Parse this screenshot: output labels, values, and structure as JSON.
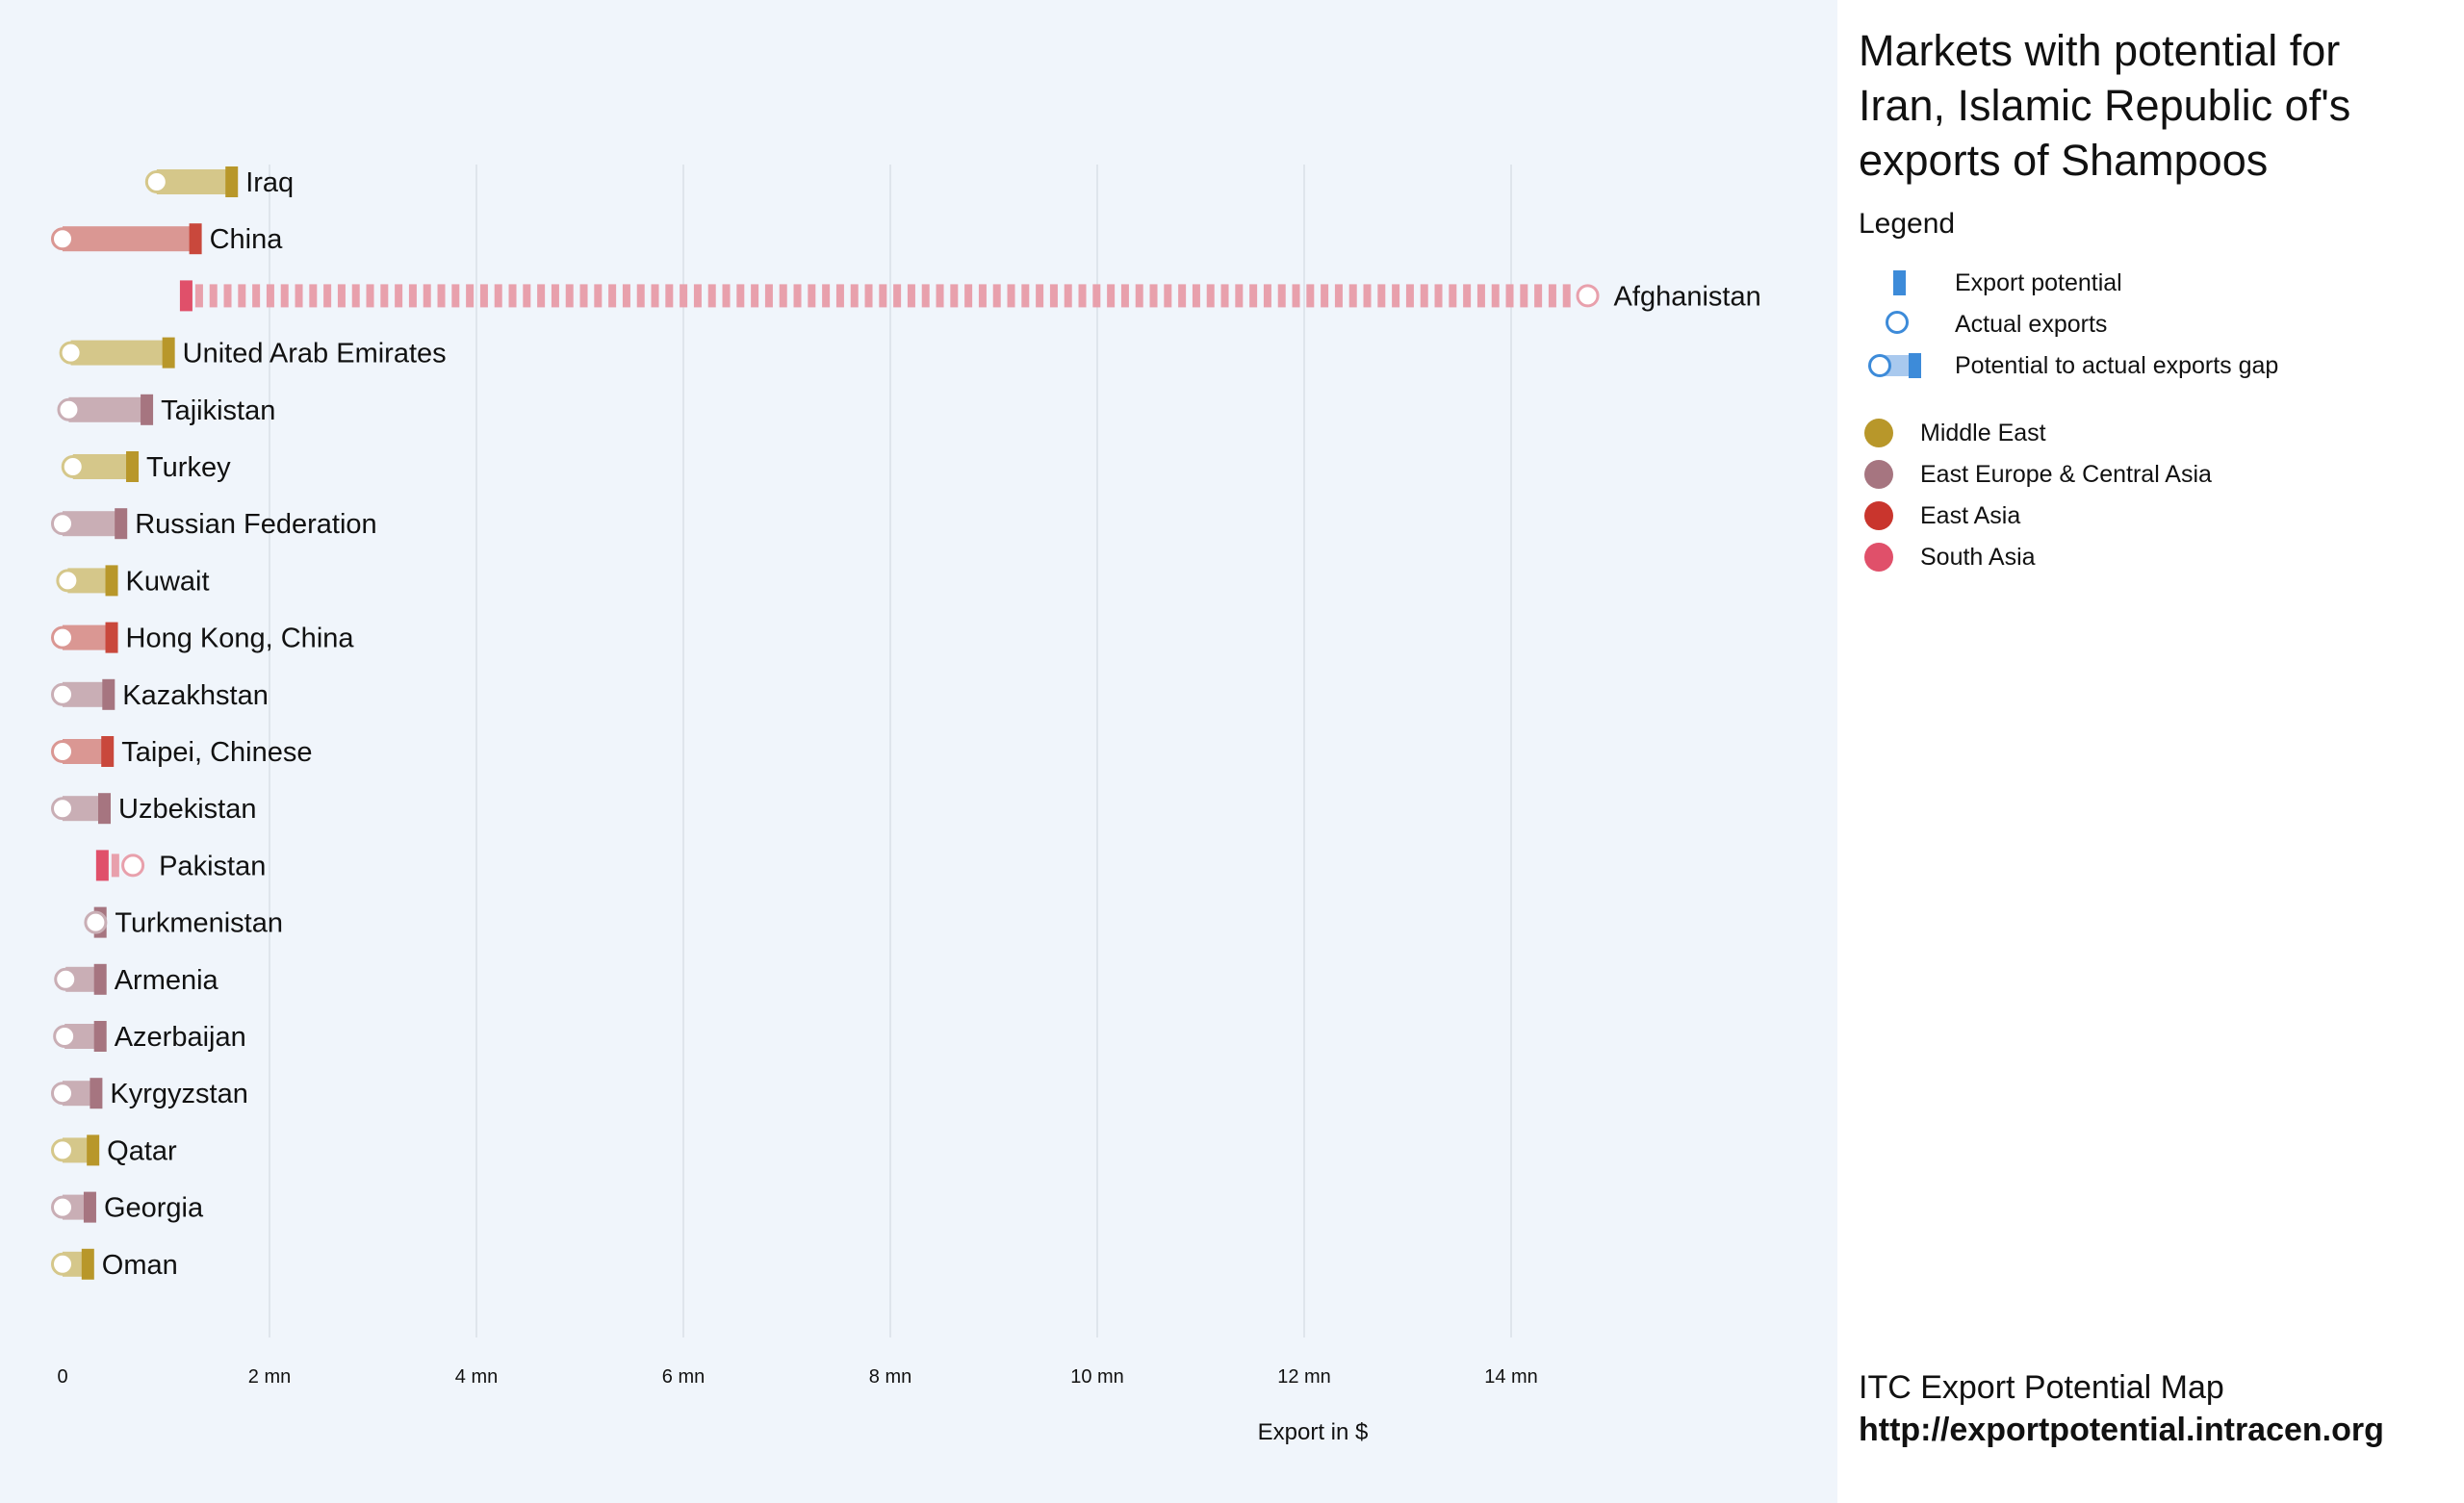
{
  "chart_data": {
    "type": "dumbbell-bar",
    "title": "Markets with potential for Iran, Islamic Republic of's exports of Shampoos",
    "xlabel": "Export in $",
    "xlim": [
      0,
      17
    ],
    "xticks": [
      0,
      2,
      4,
      6,
      8,
      10,
      12,
      14
    ],
    "xtick_labels": [
      "0",
      "2 mn",
      "4 mn",
      "6 mn",
      "8 mn",
      "10 mn",
      "12 mn",
      "14 mn"
    ],
    "unit": "mn USD",
    "markets": [
      {
        "name": "Iraq",
        "region": "Middle East",
        "potential": 1.63,
        "actual": 0.91
      },
      {
        "name": "China",
        "region": "East Asia",
        "potential": 1.28,
        "actual": 0.0
      },
      {
        "name": "Afghanistan",
        "region": "South Asia",
        "potential": 1.19,
        "actual": 14.74
      },
      {
        "name": "United Arab Emirates",
        "region": "Middle East",
        "potential": 1.02,
        "actual": 0.08
      },
      {
        "name": "Tajikistan",
        "region": "East Europe & Central Asia",
        "potential": 0.81,
        "actual": 0.06
      },
      {
        "name": "Turkey",
        "region": "Middle East",
        "potential": 0.67,
        "actual": 0.1
      },
      {
        "name": "Russian Federation",
        "region": "East Europe & Central Asia",
        "potential": 0.56,
        "actual": 0.0
      },
      {
        "name": "Kuwait",
        "region": "Middle East",
        "potential": 0.47,
        "actual": 0.05
      },
      {
        "name": "Hong Kong, China",
        "region": "East Asia",
        "potential": 0.47,
        "actual": 0.0
      },
      {
        "name": "Kazakhstan",
        "region": "East Europe & Central Asia",
        "potential": 0.44,
        "actual": 0.0
      },
      {
        "name": "Taipei, Chinese",
        "region": "East Asia",
        "potential": 0.43,
        "actual": 0.0
      },
      {
        "name": "Uzbekistan",
        "region": "East Europe & Central Asia",
        "potential": 0.4,
        "actual": 0.0
      },
      {
        "name": "Pakistan",
        "region": "South Asia",
        "potential": 0.38,
        "actual": 0.68
      },
      {
        "name": "Turkmenistan",
        "region": "East Europe & Central Asia",
        "potential": 0.36,
        "actual": 0.32
      },
      {
        "name": "Armenia",
        "region": "East Europe & Central Asia",
        "potential": 0.36,
        "actual": 0.03
      },
      {
        "name": "Azerbaijan",
        "region": "East Europe & Central Asia",
        "potential": 0.36,
        "actual": 0.02
      },
      {
        "name": "Kyrgyzstan",
        "region": "East Europe & Central Asia",
        "potential": 0.32,
        "actual": 0.0
      },
      {
        "name": "Qatar",
        "region": "Middle East",
        "potential": 0.29,
        "actual": 0.0
      },
      {
        "name": "Georgia",
        "region": "East Europe & Central Asia",
        "potential": 0.26,
        "actual": 0.0
      },
      {
        "name": "Oman",
        "region": "Middle East",
        "potential": 0.24,
        "actual": 0.0
      }
    ],
    "legend_placement": "right"
  },
  "colors": {
    "Middle East": {
      "dark": "#b8972a",
      "light": "#d5c78a"
    },
    "East Europe & Central Asia": {
      "dark": "#a67580",
      "light": "#c9aeb5"
    },
    "East Asia": {
      "dark": "#c9483c",
      "light": "#da9793"
    },
    "South Asia": {
      "dark": "#e0506a",
      "light": "#e8a0ac"
    },
    "legend_blue": "#3d8bd9",
    "legend_blue_light": "#a9c9ee"
  },
  "panel": {
    "title": "Markets with potential for Iran, Islamic Republic of's exports of Shampoos",
    "legend_heading": "Legend",
    "legend_items": [
      "Export potential",
      "Actual exports",
      "Potential to actual exports gap"
    ],
    "regions": [
      "Middle East",
      "East Europe & Central Asia",
      "East Asia",
      "South Asia"
    ],
    "footer_line1": "ITC Export Potential Map",
    "footer_line2": "http://exportpotential.intracen.org"
  }
}
